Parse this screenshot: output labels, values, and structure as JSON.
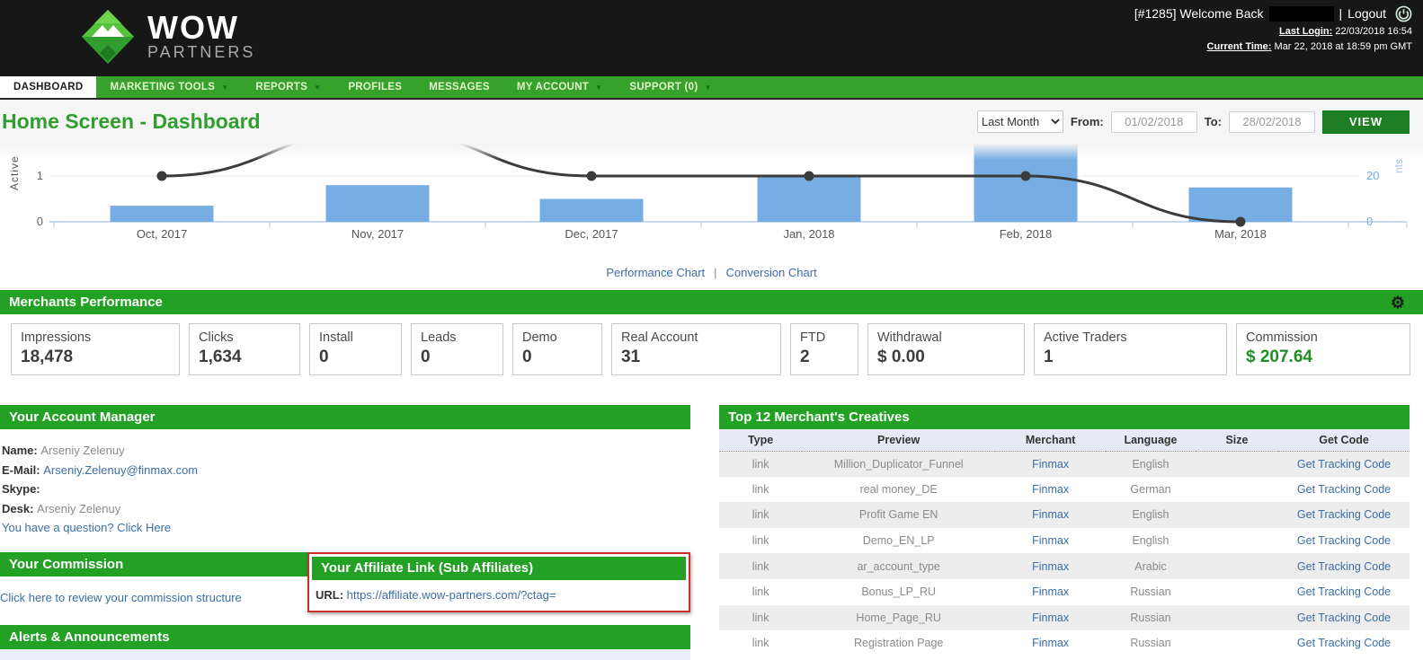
{
  "header": {
    "brand": "WOW",
    "brand_sub": "PARTNERS",
    "welcome": "[#1285] Welcome Back",
    "logout_sep": "|",
    "logout": "Logout",
    "last_login_label": "Last Login:",
    "last_login_value": "22/03/2018 16:54",
    "current_time_label": "Current Time:",
    "current_time_value": "Mar 22, 2018 at 18:59 pm GMT"
  },
  "nav": {
    "items": [
      {
        "label": "DASHBOARD",
        "active": true,
        "dropdown": false
      },
      {
        "label": "MARKETING TOOLS",
        "active": false,
        "dropdown": true
      },
      {
        "label": "REPORTS",
        "active": false,
        "dropdown": true
      },
      {
        "label": "PROFILES",
        "active": false,
        "dropdown": false
      },
      {
        "label": "MESSAGES",
        "active": false,
        "dropdown": false
      },
      {
        "label": "MY ACCOUNT",
        "active": false,
        "dropdown": true
      },
      {
        "label": "SUPPORT (0)",
        "active": false,
        "dropdown": true
      }
    ]
  },
  "page": {
    "title": "Home Screen - Dashboard"
  },
  "filters": {
    "range_selected": "Last Month",
    "from_label": "From:",
    "from_value": "01/02/2018",
    "to_label": "To:",
    "to_value": "28/02/2018",
    "view_label": "VIEW"
  },
  "chart_data": {
    "type": "bar+line",
    "categories": [
      "Oct, 2017",
      "Nov, 2017",
      "Dec, 2017",
      "Jan, 2018",
      "Feb, 2018",
      "Mar, 2018"
    ],
    "series": [
      {
        "name": "accounts-bars",
        "type": "bar",
        "axis": "right",
        "color": "#76aee3",
        "values": [
          7,
          16,
          10,
          20,
          34,
          15
        ]
      },
      {
        "name": "active-line",
        "type": "line",
        "axis": "left",
        "color": "#3b3b3b",
        "values": [
          1,
          2,
          1,
          1,
          1,
          0
        ]
      }
    ],
    "left_axis": {
      "label": "Active",
      "ticks": [
        0,
        1
      ]
    },
    "right_axis": {
      "label": "nts",
      "ticks": [
        0,
        20
      ],
      "color": "#74aee3"
    },
    "grid": true,
    "legend": "none",
    "clipped_top": true
  },
  "chart_links": {
    "performance": "Performance Chart",
    "separator": "|",
    "conversion": "Conversion Chart"
  },
  "merchants_performance": {
    "title": "Merchants Performance",
    "stats": [
      {
        "label": "Impressions",
        "value": "18,478",
        "highlight": false
      },
      {
        "label": "Clicks",
        "value": "1,634",
        "highlight": false
      },
      {
        "label": "Install",
        "value": "0",
        "highlight": false
      },
      {
        "label": "Leads",
        "value": "0",
        "highlight": false
      },
      {
        "label": "Demo",
        "value": "0",
        "highlight": false
      },
      {
        "label": "Real Account",
        "value": "31",
        "highlight": false
      },
      {
        "label": "FTD",
        "value": "2",
        "highlight": false
      },
      {
        "label": "Withdrawal",
        "value": "$ 0.00",
        "highlight": false
      },
      {
        "label": "Active Traders",
        "value": "1",
        "highlight": false
      },
      {
        "label": "Commission",
        "value": "$ 207.64",
        "highlight": true
      }
    ]
  },
  "account_manager": {
    "title": "Your Account Manager",
    "fields": [
      {
        "label": "Name:",
        "value": "Arseniy Zelenuy",
        "link": false
      },
      {
        "label": "E-Mail:",
        "value": "Arseniy.Zelenuy@finmax.com",
        "link": true
      },
      {
        "label": "Skype:",
        "value": "",
        "link": false
      },
      {
        "label": "Desk:",
        "value": "Arseniy Zelenuy",
        "link": false
      }
    ],
    "question_link": "You have a question? Click Here"
  },
  "commission": {
    "title": "Your Commission",
    "link": "Click here to review your commission structure"
  },
  "affiliate_link": {
    "title": "Your Affiliate Link (Sub Affiliates)",
    "url_label": "URL:",
    "url": "https://affiliate.wow-partners.com/?ctag="
  },
  "alerts": {
    "title": "Alerts & Announcements"
  },
  "creatives": {
    "title": "Top 12 Merchant's Creatives",
    "columns": [
      "Type",
      "Preview",
      "Merchant",
      "Language",
      "Size",
      "Get Code"
    ],
    "rows": [
      {
        "type": "link",
        "preview": "Million_Duplicator_Funnel",
        "merchant": "Finmax",
        "language": "English",
        "size": "",
        "get_code": "Get Tracking Code"
      },
      {
        "type": "link",
        "preview": "real money_DE",
        "merchant": "Finmax",
        "language": "German",
        "size": "",
        "get_code": "Get Tracking Code"
      },
      {
        "type": "link",
        "preview": "Profit Game EN",
        "merchant": "Finmax",
        "language": "English",
        "size": "",
        "get_code": "Get Tracking Code"
      },
      {
        "type": "link",
        "preview": "Demo_EN_LP",
        "merchant": "Finmax",
        "language": "English",
        "size": "",
        "get_code": "Get Tracking Code"
      },
      {
        "type": "link",
        "preview": "ar_account_type",
        "merchant": "Finmax",
        "language": "Arabic",
        "size": "",
        "get_code": "Get Tracking Code"
      },
      {
        "type": "link",
        "preview": "Bonus_LP_RU",
        "merchant": "Finmax",
        "language": "Russian",
        "size": "",
        "get_code": "Get Tracking Code"
      },
      {
        "type": "link",
        "preview": "Home_Page_RU",
        "merchant": "Finmax",
        "language": "Russian",
        "size": "",
        "get_code": "Get Tracking Code"
      },
      {
        "type": "link",
        "preview": "Registration Page",
        "merchant": "Finmax",
        "language": "Russian",
        "size": "",
        "get_code": "Get Tracking Code"
      }
    ]
  }
}
